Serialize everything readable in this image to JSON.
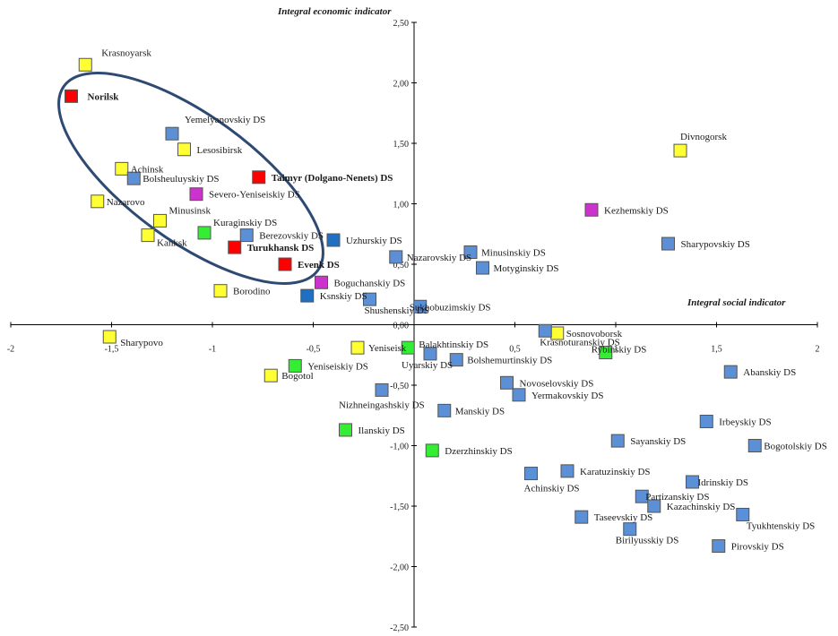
{
  "chart_data": {
    "type": "scatter",
    "xlabel": "Integral social indicator",
    "ylabel": "Integral economic indicator",
    "xlim": [
      -2,
      2
    ],
    "ylim": [
      -2.5,
      2.5
    ],
    "x_ticks": [
      {
        "value": -2,
        "label": "-2"
      },
      {
        "value": -1.5,
        "label": "-1,5"
      },
      {
        "value": -1,
        "label": "-1"
      },
      {
        "value": -0.5,
        "label": "-0,5"
      },
      {
        "value": 0.5,
        "label": "0,5"
      },
      {
        "value": 1,
        "label": "1"
      },
      {
        "value": 1.5,
        "label": "1,5"
      },
      {
        "value": 2,
        "label": "2"
      }
    ],
    "y_ticks": [
      {
        "value": 2.5,
        "label": "2,50"
      },
      {
        "value": 2,
        "label": "2,00"
      },
      {
        "value": 1.5,
        "label": "1,50"
      },
      {
        "value": 1,
        "label": "1,00"
      },
      {
        "value": 0.5,
        "label": "0,50"
      },
      {
        "value": 0,
        "label": "0,00"
      },
      {
        "value": -0.5,
        "label": "-0,50"
      },
      {
        "value": -1,
        "label": "-1,00"
      },
      {
        "value": -1.5,
        "label": "-1,50"
      },
      {
        "value": -2,
        "label": "-2,00"
      },
      {
        "value": -2.5,
        "label": "-2,50"
      }
    ],
    "colors": {
      "city": "#ffff33",
      "north": "#ff0000",
      "district": "#5b8fd6",
      "district_dark": "#1f6fc2",
      "purple": "#cc33cc",
      "green": "#33ee33",
      "marker_border": "#555555",
      "ellipse": "#2e4a73"
    },
    "points": [
      {
        "name": "Krasnoyarsk",
        "x": -1.63,
        "y": 2.15,
        "color": "city"
      },
      {
        "name": "Norilsk",
        "x": -1.7,
        "y": 1.89,
        "color": "north",
        "bold": true
      },
      {
        "name": "Yemelyanovskiy DS",
        "x": -1.2,
        "y": 1.58,
        "color": "district"
      },
      {
        "name": "Lesosibirsk",
        "x": -1.14,
        "y": 1.45,
        "color": "city"
      },
      {
        "name": "Achinsk",
        "x": -1.45,
        "y": 1.29,
        "color": "city"
      },
      {
        "name": "Bolsheuluyskiy DS",
        "x": -1.39,
        "y": 1.21,
        "color": "district"
      },
      {
        "name": "Taimyr (Dolgano-Nenets) DS",
        "x": -0.77,
        "y": 1.22,
        "color": "north",
        "bold": true
      },
      {
        "name": "Severo-Yeniseiskiy DS",
        "x": -1.08,
        "y": 1.08,
        "color": "purple"
      },
      {
        "name": "Nazarovo",
        "x": -1.57,
        "y": 1.02,
        "color": "city"
      },
      {
        "name": "Minusinsk",
        "x": -1.26,
        "y": 0.86,
        "color": "city"
      },
      {
        "name": "Kanksk",
        "x": -1.32,
        "y": 0.74,
        "color": "city"
      },
      {
        "name": "Kuraginskiy DS",
        "x": -1.04,
        "y": 0.76,
        "color": "green"
      },
      {
        "name": "Berezovskiy DS",
        "x": -0.83,
        "y": 0.74,
        "color": "district"
      },
      {
        "name": "Turukhansk DS",
        "x": -0.89,
        "y": 0.64,
        "color": "north",
        "bold": true
      },
      {
        "name": "Evenk DS",
        "x": -0.64,
        "y": 0.5,
        "color": "north",
        "bold": true
      },
      {
        "name": "Uzhurskiy DS",
        "x": -0.4,
        "y": 0.7,
        "color": "district_dark"
      },
      {
        "name": "Nazarovskiy DS",
        "x": -0.09,
        "y": 0.56,
        "color": "district"
      },
      {
        "name": "Minusinskiy DS",
        "x": 0.28,
        "y": 0.6,
        "color": "district"
      },
      {
        "name": "Motyginskiy DS",
        "x": 0.34,
        "y": 0.47,
        "color": "district"
      },
      {
        "name": "Boguchanskiy DS",
        "x": -0.46,
        "y": 0.35,
        "color": "purple"
      },
      {
        "name": "Borodino",
        "x": -0.96,
        "y": 0.28,
        "color": "city"
      },
      {
        "name": "Ksnskiy DS",
        "x": -0.53,
        "y": 0.24,
        "color": "district_dark"
      },
      {
        "name": "Shushenskiy DS",
        "x": -0.22,
        "y": 0.21,
        "color": "district"
      },
      {
        "name": "Sukhobuzimskiy DS",
        "x": 0.03,
        "y": 0.15,
        "color": "district"
      },
      {
        "name": "Divnogorsk",
        "x": 1.32,
        "y": 1.44,
        "color": "city"
      },
      {
        "name": "Kezhemskiy DS",
        "x": 0.88,
        "y": 0.95,
        "color": "purple"
      },
      {
        "name": "Sharypovskiy DS",
        "x": 1.26,
        "y": 0.67,
        "color": "district"
      },
      {
        "name": "Sosnovoborsk",
        "x": 0.71,
        "y": -0.07,
        "color": "city"
      },
      {
        "name": "Krasnoturanskiy DS",
        "x": 0.65,
        "y": -0.05,
        "color": "district"
      },
      {
        "name": "Rybinskiy DS",
        "x": 0.95,
        "y": -0.23,
        "color": "green"
      },
      {
        "name": "Sharypovo",
        "x": -1.51,
        "y": -0.1,
        "color": "city"
      },
      {
        "name": "Yeniseisk",
        "x": -0.28,
        "y": -0.19,
        "color": "city"
      },
      {
        "name": "Balakhtinskiy DS",
        "x": -0.03,
        "y": -0.19,
        "color": "green"
      },
      {
        "name": "Uyarskiy DS",
        "x": 0.08,
        "y": -0.24,
        "color": "district"
      },
      {
        "name": "Bolshemurtinskiy DS",
        "x": 0.21,
        "y": -0.29,
        "color": "district"
      },
      {
        "name": "Yeniseiskiy DS",
        "x": -0.59,
        "y": -0.34,
        "color": "green"
      },
      {
        "name": "Bogotol",
        "x": -0.71,
        "y": -0.42,
        "color": "city"
      },
      {
        "name": "Abanskiy DS",
        "x": 1.57,
        "y": -0.39,
        "color": "district"
      },
      {
        "name": "Novoselovskiy DS",
        "x": 0.46,
        "y": -0.48,
        "color": "district"
      },
      {
        "name": "Yermakovskiy DS",
        "x": 0.52,
        "y": -0.58,
        "color": "district"
      },
      {
        "name": "Nizhneingashskiy DS",
        "x": -0.16,
        "y": -0.54,
        "color": "district"
      },
      {
        "name": "Manskiy DS",
        "x": 0.15,
        "y": -0.71,
        "color": "district"
      },
      {
        "name": "Irbeyskiy DS",
        "x": 1.45,
        "y": -0.8,
        "color": "district"
      },
      {
        "name": "Ilanskiy DS",
        "x": -0.34,
        "y": -0.87,
        "color": "green"
      },
      {
        "name": "Sayanskiy DS",
        "x": 1.01,
        "y": -0.96,
        "color": "district"
      },
      {
        "name": "Bogotolskiy DS",
        "x": 1.69,
        "y": -1.0,
        "color": "district"
      },
      {
        "name": "Dzerzhinskiy DS",
        "x": 0.09,
        "y": -1.04,
        "color": "green"
      },
      {
        "name": "Karatuzinskiy DS",
        "x": 0.76,
        "y": -1.21,
        "color": "district"
      },
      {
        "name": "Achinskiy DS",
        "x": 0.58,
        "y": -1.23,
        "color": "district"
      },
      {
        "name": "Idrinskiy DS",
        "x": 1.38,
        "y": -1.3,
        "color": "district"
      },
      {
        "name": "Partizanskiy DS",
        "x": 1.13,
        "y": -1.42,
        "color": "district"
      },
      {
        "name": "Kazachinskiy DS",
        "x": 1.19,
        "y": -1.5,
        "color": "district"
      },
      {
        "name": "Tyukhtenskiy DS",
        "x": 1.63,
        "y": -1.57,
        "color": "district"
      },
      {
        "name": "Taseevskiy DS",
        "x": 0.83,
        "y": -1.59,
        "color": "district"
      },
      {
        "name": "Birilyusskiy DS",
        "x": 1.07,
        "y": -1.69,
        "color": "district"
      },
      {
        "name": "Pirovskiy DS",
        "x": 1.51,
        "y": -1.83,
        "color": "district"
      }
    ]
  }
}
